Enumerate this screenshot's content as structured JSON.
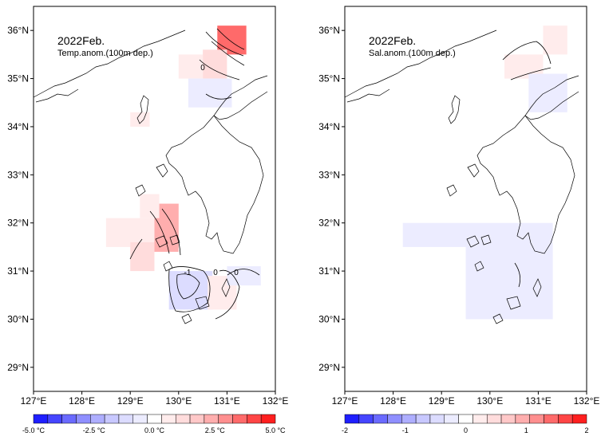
{
  "panels": [
    {
      "id": "temp",
      "title": "2022Feb.",
      "subtitle": "Temp.anom.(100m dep.)",
      "x_ticks": [
        "127°E",
        "128°E",
        "129°E",
        "130°E",
        "131°E",
        "132°E"
      ],
      "y_ticks": [
        "29°N",
        "30°N",
        "31°N",
        "32°N",
        "33°N",
        "34°N",
        "35°N",
        "36°N"
      ],
      "contour_labels": [
        "0",
        "-1",
        "0"
      ],
      "colorbar_labels": [
        "-5.0 °C",
        "-2.5 °C",
        "0.0 °C",
        "2.5 °C",
        "5.0 °C"
      ],
      "colorbar_colors": [
        "#1f1fff",
        "#4545ff",
        "#6a6aff",
        "#8f8fff",
        "#aeaeff",
        "#c8c8ff",
        "#dcdcff",
        "#ececff",
        "#ffffff",
        "#ffecec",
        "#ffdcdc",
        "#ffc8c8",
        "#ffaeae",
        "#ff8f8f",
        "#ff6a6a",
        "#ff4545",
        "#ff1f1f"
      ]
    },
    {
      "id": "sal",
      "title": "2022Feb.",
      "subtitle": "Sal.anom.(100m dep.)",
      "x_ticks": [
        "127°E",
        "128°E",
        "129°E",
        "130°E",
        "131°E",
        "132°E"
      ],
      "y_ticks": [
        "29°N",
        "30°N",
        "31°N",
        "32°N",
        "33°N",
        "34°N",
        "35°N",
        "36°N"
      ],
      "contour_labels": [],
      "colorbar_labels": [
        "-2",
        "-1",
        "0",
        "1",
        "2"
      ],
      "colorbar_colors": [
        "#1f1fff",
        "#4545ff",
        "#6a6aff",
        "#8f8fff",
        "#aeaeff",
        "#c8c8ff",
        "#dcdcff",
        "#ececff",
        "#ffffff",
        "#ffecec",
        "#ffdcdc",
        "#ffc8c8",
        "#ffaeae",
        "#ff8f8f",
        "#ff6a6a",
        "#ff4545",
        "#ff1f1f"
      ]
    }
  ],
  "map_extent": {
    "lon": [
      127,
      132
    ],
    "lat": [
      28.5,
      36.5
    ]
  },
  "anomaly_cells": {
    "temp": [
      {
        "lon": [
          130.8,
          131.4
        ],
        "lat": [
          35.5,
          36.1
        ],
        "v": 3.5
      },
      {
        "lon": [
          130.5,
          131.0
        ],
        "lat": [
          35.0,
          35.6
        ],
        "v": 1.0
      },
      {
        "lon": [
          130.0,
          130.5
        ],
        "lat": [
          35.0,
          35.5
        ],
        "v": 0.6
      },
      {
        "lon": [
          129.0,
          129.4
        ],
        "lat": [
          34.0,
          34.3
        ],
        "v": 0.4
      },
      {
        "lon": [
          130.2,
          131.1
        ],
        "lat": [
          34.4,
          35.0
        ],
        "v": -0.4
      },
      {
        "lon": [
          128.5,
          129.5
        ],
        "lat": [
          31.5,
          32.1
        ],
        "v": 0.8
      },
      {
        "lon": [
          129.0,
          129.5
        ],
        "lat": [
          31.0,
          31.6
        ],
        "v": 1.2
      },
      {
        "lon": [
          129.5,
          130.0
        ],
        "lat": [
          31.4,
          32.4
        ],
        "v": 2.5
      },
      {
        "lon": [
          129.2,
          129.6
        ],
        "lat": [
          32.1,
          32.6
        ],
        "v": 0.6
      },
      {
        "lon": [
          129.8,
          130.7
        ],
        "lat": [
          30.2,
          31.0
        ],
        "v": -1.3
      },
      {
        "lon": [
          130.6,
          131.2
        ],
        "lat": [
          30.2,
          30.9
        ],
        "v": 0.7
      },
      {
        "lon": [
          131.0,
          131.7
        ],
        "lat": [
          30.7,
          31.1
        ],
        "v": -0.8
      }
    ],
    "sal": [
      {
        "lon": [
          130.3,
          131.1
        ],
        "lat": [
          35.0,
          35.5
        ],
        "v": 0.3
      },
      {
        "lon": [
          131.1,
          131.6
        ],
        "lat": [
          35.5,
          36.1
        ],
        "v": 0.2
      },
      {
        "lon": [
          130.8,
          131.6
        ],
        "lat": [
          34.3,
          35.1
        ],
        "v": -0.3
      },
      {
        "lon": [
          128.2,
          129.5
        ],
        "lat": [
          31.5,
          32.0
        ],
        "v": -0.2
      },
      {
        "lon": [
          129.5,
          131.3
        ],
        "lat": [
          30.0,
          31.2
        ],
        "v": -0.2
      },
      {
        "lon": [
          129.5,
          131.3
        ],
        "lat": [
          31.2,
          32.0
        ],
        "v": -0.15
      }
    ]
  }
}
